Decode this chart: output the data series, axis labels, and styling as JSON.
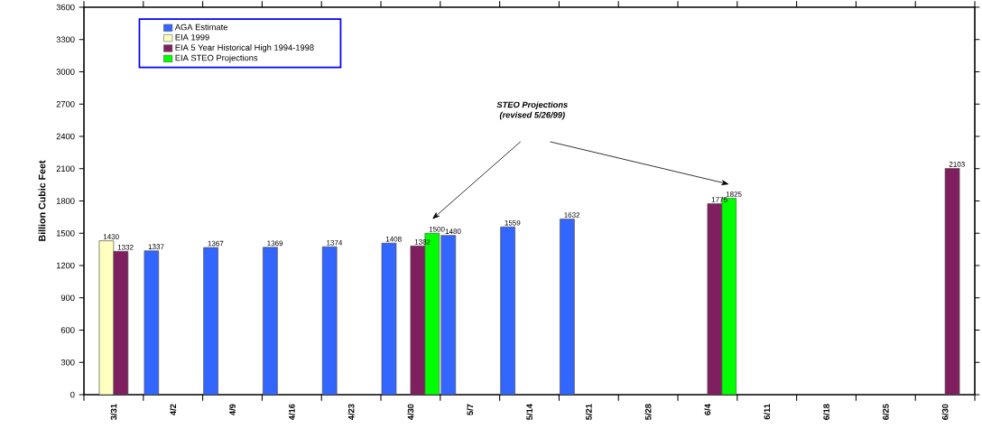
{
  "chart_data": {
    "type": "bar",
    "ylabel": "Billion Cubic Feet",
    "categories": [
      "3/31",
      "4/2",
      "4/9",
      "4/16",
      "4/23",
      "4/30",
      "5/7",
      "5/14",
      "5/21",
      "5/28",
      "6/4",
      "6/11",
      "6/18",
      "6/25",
      "6/30"
    ],
    "series": [
      {
        "name": "AGA Estimate",
        "color": "#3366ff",
        "values": [
          null,
          1337,
          1367,
          1369,
          1374,
          1408,
          1480,
          1559,
          1632,
          null,
          null,
          null,
          null,
          null,
          null
        ]
      },
      {
        "name": "EIA 1999",
        "color": "#ffffc0",
        "values": [
          1430,
          null,
          null,
          null,
          null,
          null,
          null,
          null,
          null,
          null,
          null,
          null,
          null,
          null,
          null
        ]
      },
      {
        "name": "EIA 5 Year Historical High 1994-1998",
        "color": "#7f1f5f",
        "values": [
          1332,
          null,
          null,
          null,
          null,
          1382,
          null,
          null,
          null,
          null,
          1775,
          null,
          null,
          null,
          2103
        ]
      },
      {
        "name": "EIA STEO Projections",
        "color": "#00ff00",
        "values": [
          null,
          null,
          null,
          null,
          null,
          1500,
          null,
          null,
          null,
          null,
          1825,
          null,
          null,
          null,
          null
        ]
      }
    ],
    "ylim": [
      0,
      3600
    ],
    "yticks": [
      0,
      300,
      600,
      900,
      1200,
      1500,
      1800,
      2100,
      2400,
      2700,
      3000,
      3300,
      3600
    ],
    "data_labels": true,
    "legend": "top left",
    "grid": false,
    "annotations": [
      "STEO Projections",
      "(revised 5/26/99)"
    ]
  }
}
